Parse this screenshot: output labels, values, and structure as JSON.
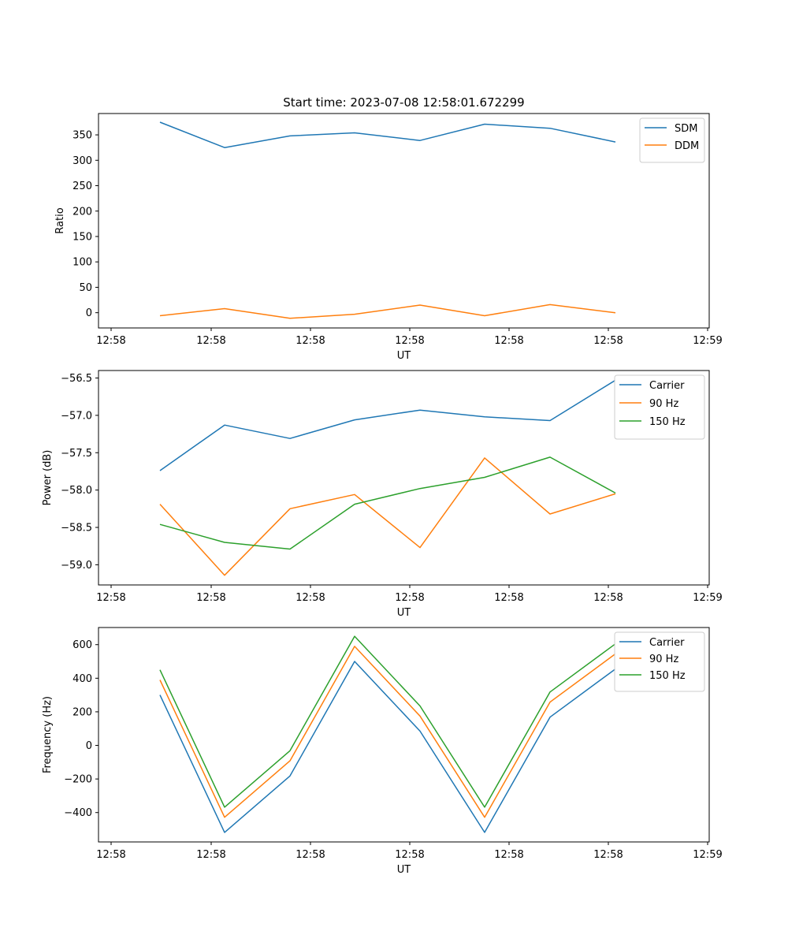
{
  "title": "Start time: 2023-07-08 12:58:01.672299",
  "chart_data": [
    {
      "type": "line",
      "title": "Start time: 2023-07-08 12:58:01.672299",
      "xlabel": "UT",
      "ylabel": "Ratio",
      "x_tick_labels": [
        "12:58",
        "12:58",
        "12:58",
        "12:58",
        "12:58",
        "12:58",
        "12:59"
      ],
      "y_ticks": [
        0,
        50,
        100,
        150,
        200,
        250,
        300,
        350
      ],
      "ylim": [
        -30,
        392
      ],
      "legend_position": "top-right",
      "series": [
        {
          "name": "SDM",
          "color": "#1f77b4",
          "values": [
            375,
            325,
            348,
            354,
            339,
            371,
            363,
            336
          ]
        },
        {
          "name": "DDM",
          "color": "#ff7f0e",
          "values": [
            -6,
            8,
            -11,
            -3,
            15,
            -6,
            16,
            0
          ]
        }
      ]
    },
    {
      "type": "line",
      "title": "",
      "xlabel": "UT",
      "ylabel": "Power (dB)",
      "x_tick_labels": [
        "12:58",
        "12:58",
        "12:58",
        "12:58",
        "12:58",
        "12:58",
        "12:59"
      ],
      "y_ticks": [
        -56.5,
        -57.0,
        -57.5,
        -58.0,
        -58.5,
        -59.0
      ],
      "y_tick_labels": [
        "−56.5",
        "−57.0",
        "−57.5",
        "−58.0",
        "−58.5",
        "−59.0"
      ],
      "ylim": [
        -59.27,
        -56.4
      ],
      "legend_position": "top-right",
      "series": [
        {
          "name": "Carrier",
          "color": "#1f77b4",
          "values": [
            -57.74,
            -57.13,
            -57.31,
            -57.06,
            -56.93,
            -57.02,
            -57.07,
            -56.53
          ]
        },
        {
          "name": "90 Hz",
          "color": "#ff7f0e",
          "values": [
            -58.19,
            -59.14,
            -58.25,
            -58.06,
            -58.77,
            -57.57,
            -58.32,
            -58.05
          ]
        },
        {
          "name": "150 Hz",
          "color": "#2ca02c",
          "values": [
            -58.46,
            -58.7,
            -58.79,
            -58.19,
            -57.98,
            -57.83,
            -57.56,
            -58.04
          ]
        }
      ]
    },
    {
      "type": "line",
      "title": "",
      "xlabel": "UT",
      "ylabel": "Frequency (Hz)",
      "x_tick_labels": [
        "12:58",
        "12:58",
        "12:58",
        "12:58",
        "12:58",
        "12:58",
        "12:59"
      ],
      "y_ticks": [
        600,
        400,
        200,
        0,
        -200,
        -400
      ],
      "y_tick_labels": [
        "600",
        "400",
        "200",
        "0",
        "−200",
        "−400"
      ],
      "ylim": [
        -575,
        702
      ],
      "legend_position": "top-right",
      "series": [
        {
          "name": "Carrier",
          "color": "#1f77b4",
          "values": [
            300,
            -518,
            -182,
            500,
            85,
            -518,
            168,
            455
          ]
        },
        {
          "name": "90 Hz",
          "color": "#ff7f0e",
          "values": [
            390,
            -428,
            -92,
            590,
            175,
            -428,
            258,
            545
          ]
        },
        {
          "name": "150 Hz",
          "color": "#2ca02c",
          "values": [
            450,
            -368,
            -32,
            650,
            235,
            -368,
            318,
            605
          ]
        }
      ]
    }
  ]
}
